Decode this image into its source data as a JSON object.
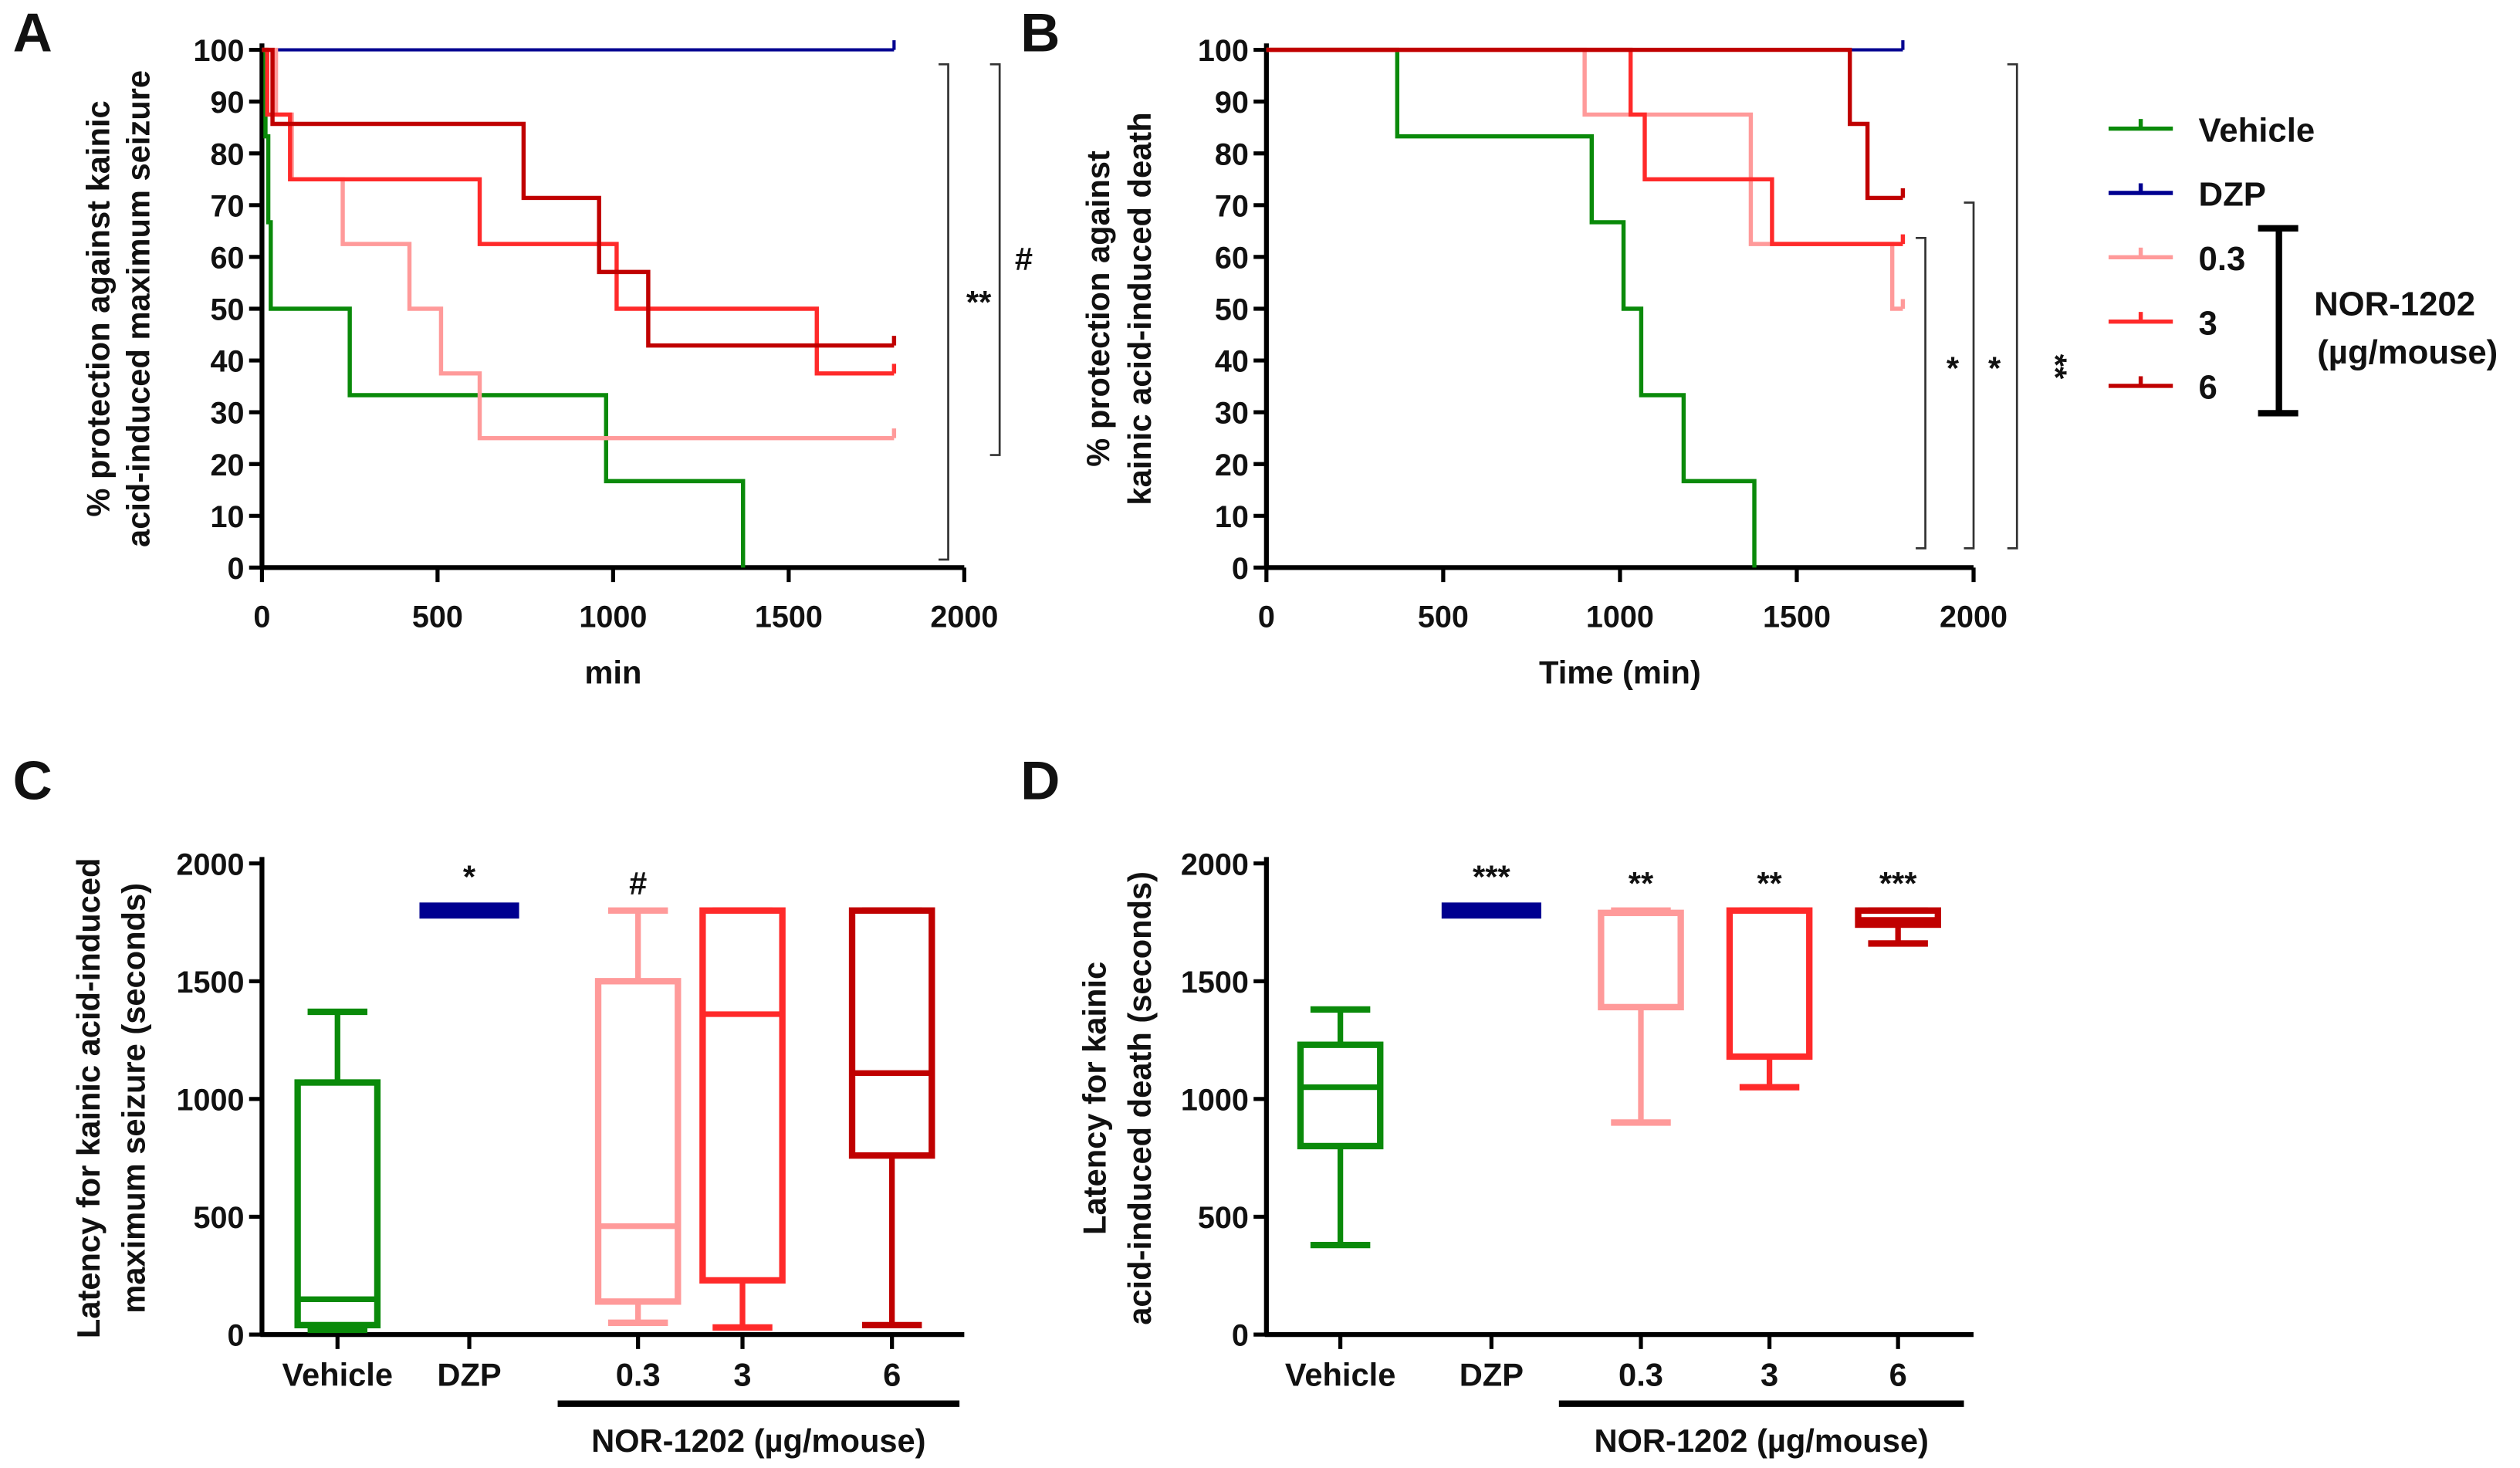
{
  "colors": {
    "Vehicle": "#0a8a0a",
    "DZP": "#000090",
    "0.3": "#ff9a9a",
    "3": "#ff2a2a",
    "6": "#c00000"
  },
  "legend": {
    "items": [
      "Vehicle",
      "DZP",
      "0.3",
      "3",
      "6"
    ],
    "group_label": "NOR-1202",
    "group_unit": "(µg/mouse)"
  },
  "chart_data": [
    {
      "panel": "A",
      "type": "line",
      "step": true,
      "xlabel": "min",
      "ylabel": [
        "% protection against kainic",
        "acid-induced maximum seizure"
      ],
      "xlim": [
        0,
        2000
      ],
      "ylim": [
        0,
        100
      ],
      "xticks": [
        0,
        500,
        1000,
        1500,
        2000
      ],
      "yticks": [
        0,
        10,
        20,
        30,
        40,
        50,
        60,
        70,
        80,
        90,
        100
      ],
      "series": [
        {
          "name": "Vehicle",
          "points": [
            [
              0,
              100
            ],
            [
              10,
              83.3
            ],
            [
              18,
              66.7
            ],
            [
              25,
              50
            ],
            [
              250,
              33.3
            ],
            [
              980,
              16.7
            ],
            [
              1370,
              0
            ]
          ]
        },
        {
          "name": "DZP",
          "points": [
            [
              0,
              100
            ],
            [
              1800,
              100
            ]
          ]
        },
        {
          "name": "0.3",
          "points": [
            [
              0,
              100
            ],
            [
              40,
              87.5
            ],
            [
              85,
              75
            ],
            [
              230,
              62.5
            ],
            [
              420,
              50
            ],
            [
              510,
              37.5
            ],
            [
              620,
              25
            ],
            [
              1800,
              25
            ]
          ]
        },
        {
          "name": "3",
          "points": [
            [
              0,
              100
            ],
            [
              15,
              87.5
            ],
            [
              80,
              75
            ],
            [
              230,
              75
            ],
            [
              620,
              62.5
            ],
            [
              1010,
              50
            ],
            [
              1580,
              37.5
            ],
            [
              1800,
              37.5
            ]
          ]
        },
        {
          "name": "6",
          "points": [
            [
              0,
              100
            ],
            [
              30,
              85.7
            ],
            [
              745,
              71.4
            ],
            [
              960,
              57.1
            ],
            [
              1100,
              42.9
            ],
            [
              1800,
              42.9
            ]
          ]
        }
      ],
      "annotations": [
        "**",
        "#"
      ]
    },
    {
      "panel": "B",
      "type": "line",
      "step": true,
      "xlabel": "Time (min)",
      "ylabel": [
        "% protection against",
        "kainic acid-induced death"
      ],
      "xlim": [
        0,
        2000
      ],
      "ylim": [
        0,
        100
      ],
      "xticks": [
        0,
        500,
        1000,
        1500,
        2000
      ],
      "yticks": [
        0,
        10,
        20,
        30,
        40,
        50,
        60,
        70,
        80,
        90,
        100
      ],
      "series": [
        {
          "name": "Vehicle",
          "points": [
            [
              0,
              100
            ],
            [
              370,
              83.3
            ],
            [
              920,
              66.7
            ],
            [
              1010,
              50
            ],
            [
              1060,
              33.3
            ],
            [
              1180,
              16.7
            ],
            [
              1380,
              0
            ]
          ]
        },
        {
          "name": "DZP",
          "points": [
            [
              0,
              100
            ],
            [
              1800,
              100
            ]
          ]
        },
        {
          "name": "0.3",
          "points": [
            [
              0,
              100
            ],
            [
              900,
              87.5
            ],
            [
              1370,
              62.5
            ],
            [
              1770,
              50
            ],
            [
              1800,
              50
            ]
          ]
        },
        {
          "name": "3",
          "points": [
            [
              0,
              100
            ],
            [
              1030,
              87.5
            ],
            [
              1070,
              75
            ],
            [
              1430,
              62.5
            ],
            [
              1800,
              62.5
            ]
          ]
        },
        {
          "name": "6",
          "points": [
            [
              0,
              100
            ],
            [
              1650,
              85.7
            ],
            [
              1700,
              71.4
            ],
            [
              1800,
              71.4
            ]
          ]
        }
      ],
      "annotations": [
        "*",
        "*",
        "**"
      ]
    },
    {
      "panel": "C",
      "type": "box",
      "ylabel": [
        "Latency for kainic acid-induced",
        "maximum seizure (seconds)"
      ],
      "ylim": [
        0,
        2000
      ],
      "yticks": [
        0,
        500,
        1000,
        1500,
        2000
      ],
      "categories": [
        "Vehicle",
        "DZP",
        "0.3",
        "3",
        "6"
      ],
      "group_label": "NOR-1202 (µg/mouse)",
      "boxes": [
        {
          "name": "Vehicle",
          "min": 20,
          "q1": 40,
          "median": 150,
          "q3": 1070,
          "max": 1370,
          "sig": ""
        },
        {
          "name": "DZP",
          "min": 1800,
          "q1": 1800,
          "median": 1800,
          "q3": 1800,
          "max": 1800,
          "sig": "*"
        },
        {
          "name": "0.3",
          "min": 50,
          "q1": 140,
          "median": 460,
          "q3": 1500,
          "max": 1800,
          "sig": "#"
        },
        {
          "name": "3",
          "min": 30,
          "q1": 230,
          "median": 1360,
          "q3": 1800,
          "max": 1800,
          "sig": ""
        },
        {
          "name": "6",
          "min": 40,
          "q1": 760,
          "median": 1110,
          "q3": 1800,
          "max": 1800,
          "sig": ""
        }
      ]
    },
    {
      "panel": "D",
      "type": "box",
      "ylabel": [
        "Latency for kainic",
        "acid-induced death (seconds)"
      ],
      "ylim": [
        0,
        2000
      ],
      "yticks": [
        0,
        500,
        1000,
        1500,
        2000
      ],
      "categories": [
        "Vehicle",
        "DZP",
        "0.3",
        "3",
        "6"
      ],
      "group_label": "NOR-1202 (µg/mouse)",
      "boxes": [
        {
          "name": "Vehicle",
          "min": 380,
          "q1": 800,
          "median": 1050,
          "q3": 1230,
          "max": 1380,
          "sig": ""
        },
        {
          "name": "DZP",
          "min": 1800,
          "q1": 1800,
          "median": 1800,
          "q3": 1800,
          "max": 1800,
          "sig": "***"
        },
        {
          "name": "0.3",
          "min": 900,
          "q1": 1390,
          "median": 1790,
          "q3": 1790,
          "max": 1800,
          "sig": "**"
        },
        {
          "name": "3",
          "min": 1050,
          "q1": 1180,
          "median": 1800,
          "q3": 1800,
          "max": 1800,
          "sig": "**"
        },
        {
          "name": "6",
          "min": 1660,
          "q1": 1740,
          "median": 1760,
          "q3": 1800,
          "max": 1800,
          "sig": "***"
        }
      ]
    }
  ]
}
